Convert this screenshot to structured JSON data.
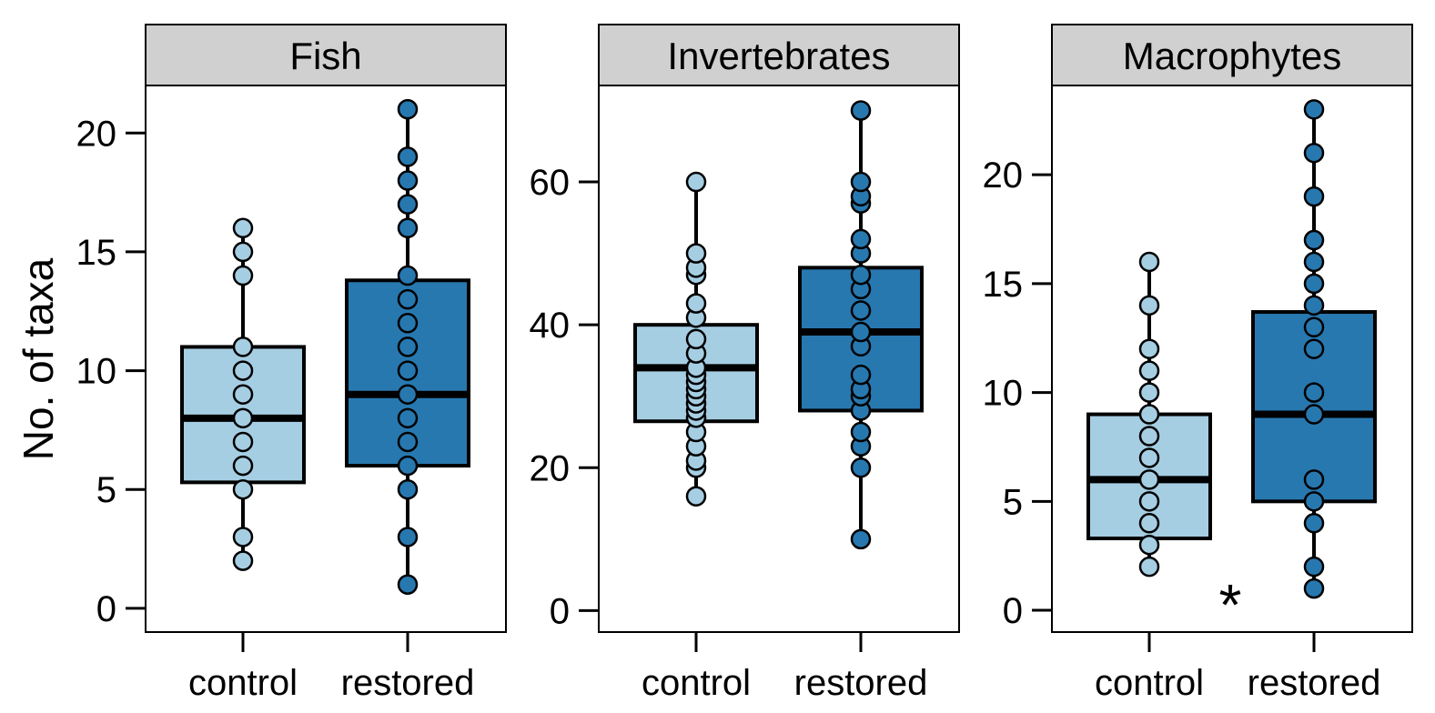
{
  "chart_data": {
    "type": "boxplot",
    "ylabel": "No. of taxa",
    "categories": [
      "control",
      "restored"
    ],
    "colors": {
      "control": "#a6cee3",
      "restored": "#2878b0",
      "outline": "#000000",
      "strip": "#d0d0d0"
    },
    "panels": [
      {
        "title": "Fish",
        "ylim": [
          -1,
          22
        ],
        "yticks": [
          0,
          5,
          10,
          15,
          20
        ],
        "groups": [
          {
            "name": "control",
            "q1": 5.3,
            "median": 8,
            "q3": 11,
            "whisker_low": 2,
            "whisker_high": 16,
            "points": [
              2,
              3,
              5,
              6,
              7,
              8,
              9,
              10,
              11,
              14,
              15,
              16
            ]
          },
          {
            "name": "restored",
            "q1": 6,
            "median": 9,
            "q3": 13.8,
            "whisker_low": 1,
            "whisker_high": 21,
            "points": [
              1,
              3,
              5,
              6,
              7,
              8,
              9,
              10,
              11,
              12,
              13,
              14,
              16,
              17,
              18,
              19,
              21
            ]
          }
        ]
      },
      {
        "title": "Invertebrates",
        "ylim": [
          -3,
          73.5
        ],
        "yticks": [
          0,
          20,
          40,
          60
        ],
        "groups": [
          {
            "name": "control",
            "q1": 26.5,
            "median": 34,
            "q3": 40,
            "whisker_low": 16,
            "whisker_high": 60,
            "points": [
              16,
              20,
              21,
              23,
              25,
              27,
              28,
              29,
              30,
              31,
              32,
              33,
              34,
              36,
              38,
              41,
              43,
              47,
              48,
              50,
              60
            ]
          },
          {
            "name": "restored",
            "q1": 28,
            "median": 39,
            "q3": 48,
            "whisker_low": 10,
            "whisker_high": 70,
            "points": [
              10,
              20,
              23,
              25,
              28,
              30,
              31,
              33,
              37,
              39,
              42,
              45,
              47,
              50,
              52,
              57,
              58,
              60,
              70
            ]
          }
        ]
      },
      {
        "title": "Macrophytes",
        "ylim": [
          -1,
          24.1
        ],
        "yticks": [
          0,
          5,
          10,
          15,
          20
        ],
        "annotation": "*",
        "groups": [
          {
            "name": "control",
            "q1": 3.3,
            "median": 6,
            "q3": 9,
            "whisker_low": 2,
            "whisker_high": 16,
            "points": [
              2,
              3,
              4,
              5,
              6,
              7,
              8,
              9,
              10,
              11,
              12,
              14,
              16
            ]
          },
          {
            "name": "restored",
            "q1": 5,
            "median": 9,
            "q3": 13.7,
            "whisker_low": 1,
            "whisker_high": 23,
            "points": [
              1,
              2,
              4,
              5,
              6,
              9,
              10,
              12,
              13,
              14,
              15,
              16,
              17,
              19,
              21,
              23
            ]
          }
        ]
      }
    ]
  }
}
